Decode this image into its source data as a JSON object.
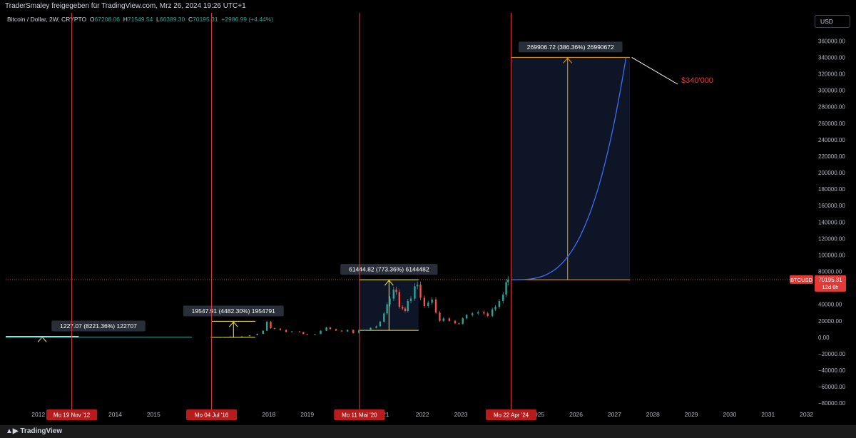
{
  "header": {
    "shared_by": "TraderSmaley freigegeben für TradingView.com, Mrz 26, 2024 19:26 UTC+1"
  },
  "legend": {
    "symbol": "Bitcoin / Dollar, 2W, CRYPTO",
    "open_label": "O",
    "open": "67208.06",
    "high_label": "H",
    "high": "71549.54",
    "low_label": "L",
    "low": "66389.30",
    "close_label": "C",
    "close": "70195.31",
    "change": "+2986.99 (+4.44%)"
  },
  "currency": "USD",
  "price_tag": {
    "symbol": "BTCUSD",
    "price": "70195.31",
    "countdown": "12d 6h"
  },
  "footer": {
    "brand": "TradingView"
  },
  "colors": {
    "background": "#000000",
    "up": "#26a69a",
    "down": "#ef5350",
    "vline": "#e53935",
    "range": "#ffeb3b",
    "range_big": "#f7a600",
    "curve": "#3d6ff5",
    "target_text": "#e53935",
    "label_bg": "#2a2e39"
  },
  "chart_data": {
    "type": "candlestick",
    "title": "Bitcoin / Dollar, 2W, CRYPTO",
    "y_axis": {
      "ticks": [
        "360000.00",
        "340000.00",
        "320000.00",
        "300000.00",
        "280000.00",
        "260000.00",
        "240000.00",
        "220000.00",
        "200000.00",
        "180000.00",
        "160000.00",
        "140000.00",
        "120000.00",
        "100000.00",
        "80000.00",
        "60000.00",
        "40000.00",
        "20000.00",
        "0.00",
        "−20000.00",
        "−40000.00",
        "−60000.00",
        "−80000.00"
      ],
      "ylim": [
        -85000,
        375000
      ]
    },
    "x_axis": {
      "ticks": [
        {
          "label": "2012",
          "t": 2012.0
        },
        {
          "label": "2014",
          "t": 2014.0
        },
        {
          "label": "2015",
          "t": 2015.0
        },
        {
          "label": "20",
          "t": 2016.0
        },
        {
          "label": "17",
          "t": 2017.0
        },
        {
          "label": "2018",
          "t": 2018.0
        },
        {
          "label": "2019",
          "t": 2019.0
        },
        {
          "label": "021",
          "t": 2021.0
        },
        {
          "label": "2022",
          "t": 2022.0
        },
        {
          "label": "2023",
          "t": 2023.0
        },
        {
          "label": "2025",
          "t": 2025.0
        },
        {
          "label": "2026",
          "t": 2026.0
        },
        {
          "label": "2027",
          "t": 2027.0
        },
        {
          "label": "2028",
          "t": 2028.0
        },
        {
          "label": "2029",
          "t": 2029.0
        },
        {
          "label": "2030",
          "t": 2030.0
        },
        {
          "label": "2031",
          "t": 2031.0
        },
        {
          "label": "2032",
          "t": 2032.0
        }
      ],
      "xlim": [
        2011.15,
        2032.1
      ]
    },
    "vertical_lines": [
      {
        "t": 2012.87,
        "label": "Mo 19 Nov '12"
      },
      {
        "t": 2016.51,
        "label": "Mo 04 Jul '16"
      },
      {
        "t": 2020.36,
        "label": "Mo 11 Mai '20"
      },
      {
        "t": 2024.31,
        "label": "Mo 22 Apr '24"
      }
    ],
    "candles_close": [
      [
        2016.0,
        430
      ],
      [
        2016.5,
        670
      ],
      [
        2016.8,
        700
      ],
      [
        2017.0,
        1000
      ],
      [
        2017.3,
        1200
      ],
      [
        2017.5,
        2500
      ],
      [
        2017.7,
        4300
      ],
      [
        2017.85,
        8000
      ],
      [
        2017.95,
        19000
      ],
      [
        2018.05,
        11000
      ],
      [
        2018.15,
        10500
      ],
      [
        2018.3,
        9000
      ],
      [
        2018.45,
        6500
      ],
      [
        2018.6,
        7200
      ],
      [
        2018.8,
        6300
      ],
      [
        2018.9,
        4000
      ],
      [
        2019.0,
        3700
      ],
      [
        2019.2,
        4000
      ],
      [
        2019.35,
        8000
      ],
      [
        2019.5,
        12000
      ],
      [
        2019.6,
        10000
      ],
      [
        2019.75,
        8200
      ],
      [
        2019.9,
        7200
      ],
      [
        2020.05,
        9000
      ],
      [
        2020.2,
        5000
      ],
      [
        2020.35,
        8800
      ],
      [
        2020.5,
        9200
      ],
      [
        2020.65,
        11500
      ],
      [
        2020.8,
        13500
      ],
      [
        2020.9,
        19000
      ],
      [
        2021.0,
        29000
      ],
      [
        2021.08,
        40000
      ],
      [
        2021.15,
        47000
      ],
      [
        2021.25,
        58000
      ],
      [
        2021.32,
        55000
      ],
      [
        2021.4,
        37000
      ],
      [
        2021.48,
        35000
      ],
      [
        2021.55,
        32000
      ],
      [
        2021.62,
        44000
      ],
      [
        2021.7,
        47000
      ],
      [
        2021.8,
        62000
      ],
      [
        2021.87,
        64000
      ],
      [
        2021.95,
        48000
      ],
      [
        2022.05,
        38000
      ],
      [
        2022.15,
        42000
      ],
      [
        2022.25,
        46000
      ],
      [
        2022.35,
        30000
      ],
      [
        2022.45,
        20000
      ],
      [
        2022.55,
        23000
      ],
      [
        2022.7,
        20000
      ],
      [
        2022.85,
        17000
      ],
      [
        2022.95,
        16500
      ],
      [
        2023.05,
        23000
      ],
      [
        2023.15,
        27000
      ],
      [
        2023.3,
        29000
      ],
      [
        2023.45,
        30500
      ],
      [
        2023.6,
        29000
      ],
      [
        2023.7,
        26000
      ],
      [
        2023.82,
        34000
      ],
      [
        2023.9,
        37000
      ],
      [
        2024.0,
        44000
      ],
      [
        2024.1,
        52000
      ],
      [
        2024.18,
        67000
      ],
      [
        2024.23,
        70195
      ]
    ],
    "measures": [
      {
        "label": "1227.07 (8221.36%) 122707",
        "t0": 2011.15,
        "t1": 2013.05,
        "p0": 0,
        "p1": 1227
      },
      {
        "label": "19547.91 (4482.30%) 1954791",
        "t0": 2016.51,
        "t1": 2017.65,
        "p0": 0,
        "p1": 19548
      },
      {
        "label": "61444.82 (773.36%) 6144482",
        "t0": 2020.36,
        "t1": 2021.9,
        "p0": 8500,
        "p1": 70000
      },
      {
        "label": "269906.72 (386.36%) 26990672",
        "t0": 2024.31,
        "t1": 2027.4,
        "p0": 70000,
        "p1": 340000
      }
    ],
    "projection": {
      "t0": 2024.31,
      "t1": 2027.3,
      "p0": 70000,
      "p1": 340000
    },
    "annotation": "$340'000",
    "last_price": 70195.31
  }
}
